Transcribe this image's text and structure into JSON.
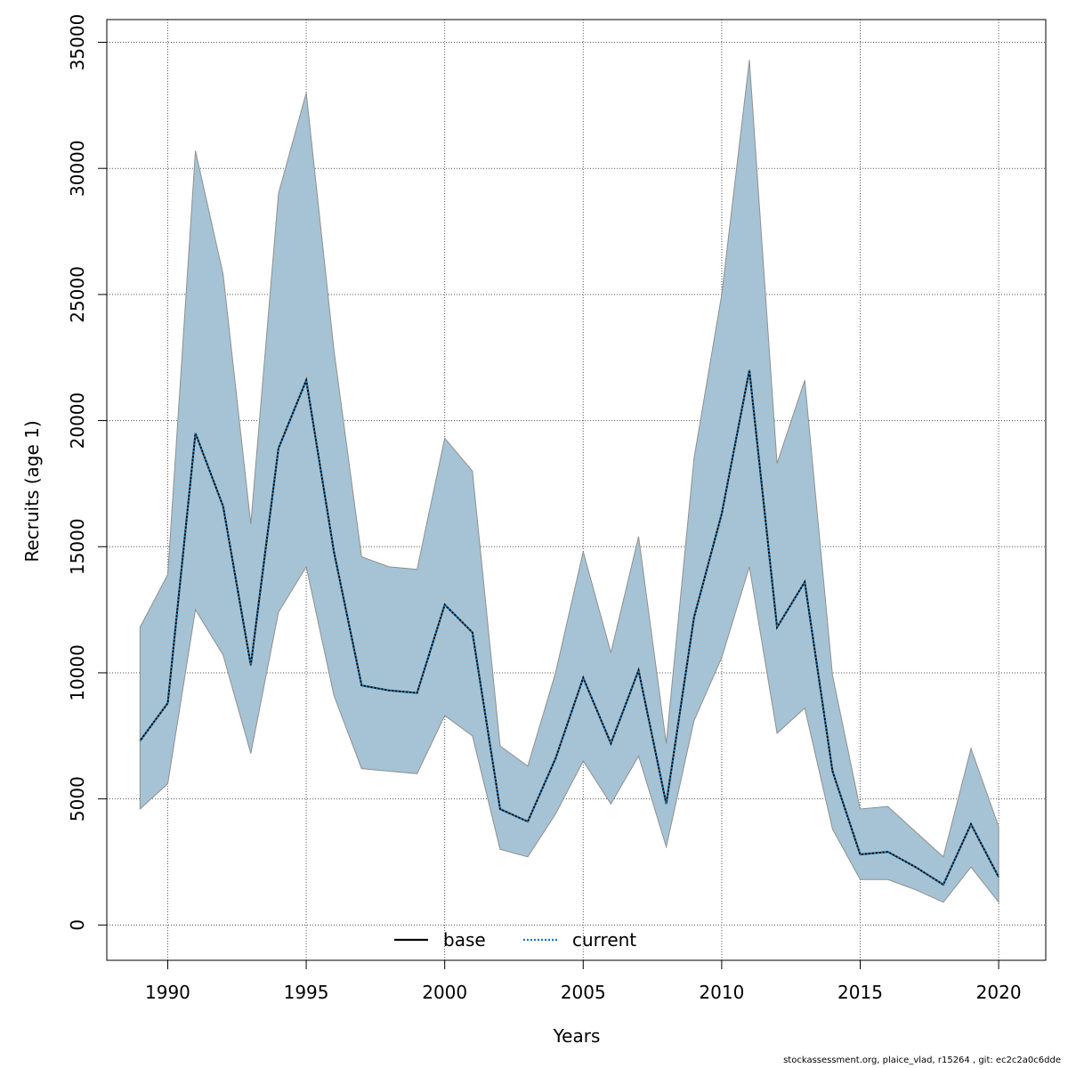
{
  "chart_data": {
    "type": "area",
    "xlabel": "Years",
    "ylabel": "Recruits (age 1)",
    "xlim": [
      1987.8,
      2021.7
    ],
    "ylim": [
      -1400,
      35900
    ],
    "xticks": [
      1990,
      1995,
      2000,
      2005,
      2010,
      2015,
      2020
    ],
    "yticks": [
      0,
      5000,
      10000,
      15000,
      20000,
      25000,
      30000,
      35000
    ],
    "grid": true,
    "legend_position": "bottom-center",
    "x": [
      1989,
      1990,
      1991,
      1992,
      1993,
      1994,
      1995,
      1996,
      1997,
      1998,
      1999,
      2000,
      2001,
      2002,
      2003,
      2004,
      2005,
      2006,
      2007,
      2008,
      2009,
      2010,
      2011,
      2012,
      2013,
      2014,
      2015,
      2016,
      2017,
      2018,
      2019,
      2020
    ],
    "band": {
      "upper": [
        11800,
        13900,
        30700,
        25800,
        15900,
        29000,
        33000,
        22800,
        14600,
        14200,
        14100,
        19300,
        18000,
        7100,
        6300,
        10000,
        14800,
        10800,
        15400,
        7200,
        18500,
        25000,
        34300,
        18300,
        21600,
        9900,
        4600,
        4700,
        3700,
        2700,
        7000,
        3900
      ],
      "lower": [
        4600,
        5600,
        12500,
        10700,
        6800,
        12400,
        14200,
        9100,
        6200,
        6100,
        6000,
        8300,
        7500,
        3000,
        2700,
        4400,
        6500,
        4800,
        6700,
        3100,
        8100,
        10600,
        14200,
        7600,
        8600,
        3800,
        1800,
        1800,
        1400,
        900,
        2300,
        900
      ],
      "fill": "#a5c3d4",
      "stroke": "#909090"
    },
    "series": [
      {
        "name": "base",
        "color": "#000000",
        "style": "solid",
        "values": [
          7300,
          8800,
          19500,
          16600,
          10300,
          18900,
          21600,
          14800,
          9500,
          9300,
          9200,
          12700,
          11600,
          4600,
          4100,
          6600,
          9800,
          7200,
          10100,
          4800,
          12200,
          16300,
          22000,
          11800,
          13600,
          6100,
          2800,
          2900,
          2300,
          1600,
          4000,
          1900
        ]
      },
      {
        "name": "current",
        "color": "#1f78b4",
        "style": "dotted",
        "values": [
          7300,
          8800,
          19500,
          16600,
          10300,
          18900,
          21600,
          14800,
          9500,
          9300,
          9200,
          12700,
          11600,
          4600,
          4100,
          6600,
          9800,
          7200,
          10100,
          4800,
          12200,
          16300,
          22000,
          11800,
          13600,
          6100,
          2800,
          2900,
          2300,
          1600,
          4000,
          1900
        ]
      }
    ]
  },
  "footer": "stockassessment.org, plaice_vlad, r15264 , git: ec2c2a0c6dde"
}
